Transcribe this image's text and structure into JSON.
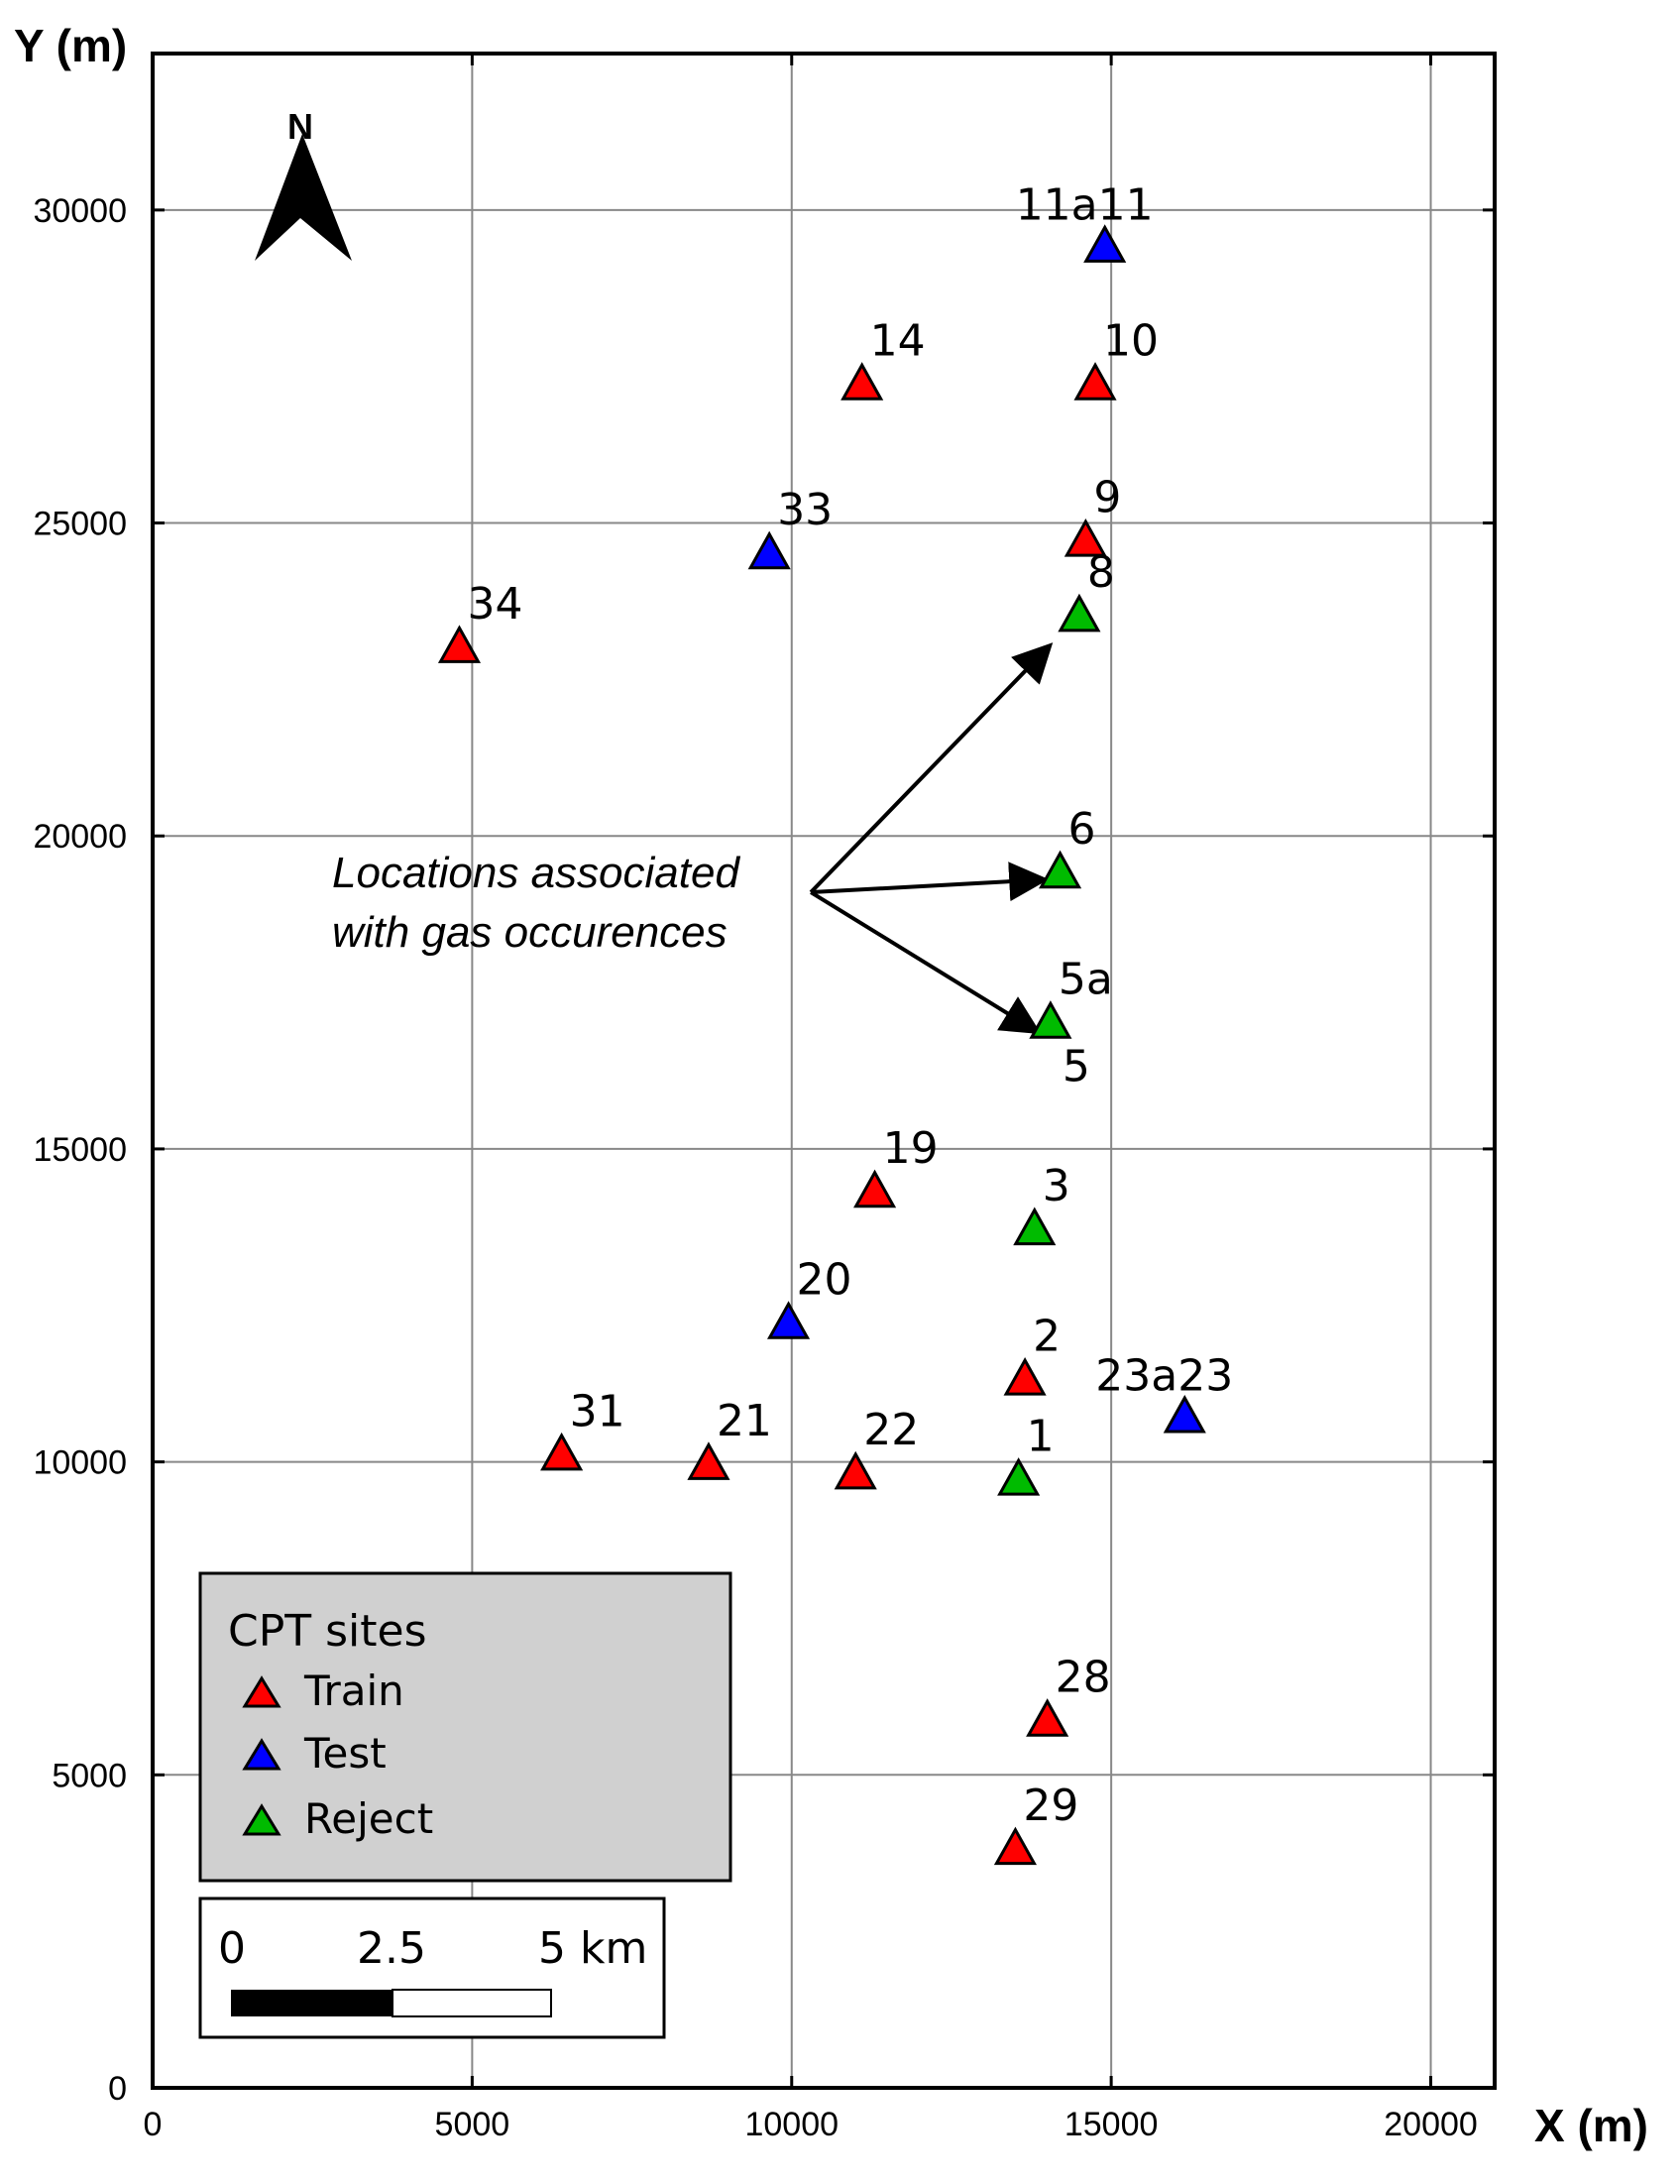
{
  "chart_data": {
    "type": "scatter",
    "xlabel": "X (m)",
    "ylabel": "Y (m)",
    "xlim": [
      0,
      21000
    ],
    "ylim": [
      0,
      32500
    ],
    "x_ticks": [
      0,
      5000,
      10000,
      15000,
      20000
    ],
    "y_ticks": [
      0,
      5000,
      10000,
      15000,
      20000,
      25000,
      30000
    ],
    "grid": true,
    "north_arrow_label": "N",
    "annotation": {
      "line1": "Locations associated",
      "line2": "with gas occurences",
      "origin": [
        10300,
        19100
      ],
      "targets": [
        [
          14000,
          23000
        ],
        [
          13900,
          19300
        ],
        [
          13800,
          16900
        ]
      ]
    },
    "legend": {
      "title": "CPT sites",
      "placement": "bottom-left",
      "entries": [
        {
          "label": "Train",
          "color": "#ff0000"
        },
        {
          "label": "Test",
          "color": "#0000ff"
        },
        {
          "label": "Reject",
          "color": "#00bb00"
        }
      ]
    },
    "scale_bar": {
      "labels": [
        "0",
        "2.5",
        "5 km"
      ]
    },
    "series": [
      {
        "name": "Train",
        "color": "#ff0000",
        "points": [
          {
            "label": "34",
            "x": 4800,
            "y": 23000
          },
          {
            "label": "14",
            "x": 11100,
            "y": 27200
          },
          {
            "label": "10",
            "x": 14750,
            "y": 27200
          },
          {
            "label": "9",
            "x": 14600,
            "y": 24700
          },
          {
            "label": "19",
            "x": 11300,
            "y": 14300
          },
          {
            "label": "2",
            "x": 13650,
            "y": 11300
          },
          {
            "label": "31",
            "x": 6400,
            "y": 10100
          },
          {
            "label": "21",
            "x": 8700,
            "y": 9950
          },
          {
            "label": "22",
            "x": 11000,
            "y": 9800
          },
          {
            "label": "28",
            "x": 14000,
            "y": 5850
          },
          {
            "label": "29",
            "x": 13500,
            "y": 3800
          }
        ]
      },
      {
        "name": "Test",
        "color": "#0000ff",
        "points": [
          {
            "label": "11a11",
            "x": 14900,
            "y": 29400
          },
          {
            "label": "33",
            "x": 9650,
            "y": 24500
          },
          {
            "label": "20",
            "x": 9950,
            "y": 12200
          },
          {
            "label": "23a23",
            "x": 16150,
            "y": 10700
          }
        ]
      },
      {
        "name": "Reject",
        "color": "#00bb00",
        "points": [
          {
            "label": "8",
            "x": 14500,
            "y": 23500
          },
          {
            "label": "6",
            "x": 14200,
            "y": 19400
          },
          {
            "label": "5a",
            "x": 14050,
            "y": 17000
          },
          {
            "label": "5",
            "x": 14050,
            "y": 17000
          },
          {
            "label": "3",
            "x": 13800,
            "y": 13700
          },
          {
            "label": "1",
            "x": 13550,
            "y": 9700
          }
        ]
      }
    ]
  }
}
